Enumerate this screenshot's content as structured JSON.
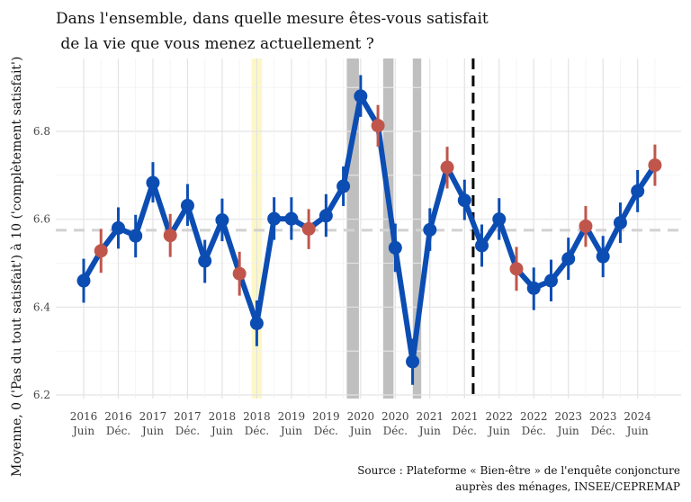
{
  "chart_data": {
    "type": "line",
    "title_lines": [
      "Dans l'ensemble, dans quelle mesure êtes-vous satisfait",
      " de la vie que vous menez actuellement ?"
    ],
    "ylabel": "Moyenne, 0 ('Pas du tout satisfait') à 10 ('complètement satisfait')",
    "ylim": [
      6.2,
      6.95
    ],
    "yticks": [
      6.2,
      6.4,
      6.6,
      6.8
    ],
    "ytick_labels": [
      "6.2",
      "6.4",
      "6.6",
      "6.8"
    ],
    "xticks": [
      {
        "x": 0,
        "year": "2016",
        "label": "Juin"
      },
      {
        "x": 2,
        "year": "2016",
        "label": "Déc."
      },
      {
        "x": 4,
        "year": "2017",
        "label": "Juin"
      },
      {
        "x": 6,
        "year": "2017",
        "label": "Déc."
      },
      {
        "x": 8,
        "year": "2018",
        "label": "Juin"
      },
      {
        "x": 10,
        "year": "2018",
        "label": "Déc."
      },
      {
        "x": 12,
        "year": "2019",
        "label": "Juin"
      },
      {
        "x": 14,
        "year": "2019",
        "label": "Déc."
      },
      {
        "x": 16,
        "year": "2020",
        "label": "Juin"
      },
      {
        "x": 18,
        "year": "2020",
        "label": "Déc."
      },
      {
        "x": 20,
        "year": "2021",
        "label": "Juin"
      },
      {
        "x": 22,
        "year": "2021",
        "label": "Déc."
      },
      {
        "x": 24,
        "year": "2022",
        "label": "Juin"
      },
      {
        "x": 26,
        "year": "2022",
        "label": "Déc."
      },
      {
        "x": 28,
        "year": "2023",
        "label": "Juin"
      },
      {
        "x": 30,
        "year": "2023",
        "label": "Déc."
      },
      {
        "x": 32,
        "year": "2024",
        "label": "Juin"
      }
    ],
    "reference_line": 6.575,
    "vertical_dashed_x": 22.5,
    "shaded_periods": [
      {
        "from": 9.7,
        "to": 10.3,
        "color": "#fdf7c7"
      },
      {
        "from": 15.2,
        "to": 15.9,
        "color": "#bfbfbf"
      },
      {
        "from": 17.3,
        "to": 17.9,
        "color": "#bfbfbf"
      },
      {
        "from": 19.0,
        "to": 19.5,
        "color": "#bfbfbf"
      }
    ],
    "series": [
      {
        "color": "#0c4db3",
        "highlight_color": "#c0564b",
        "points": [
          {
            "x": 0,
            "y": 6.46,
            "lo": 6.41,
            "hi": 6.51,
            "h": false
          },
          {
            "x": 1,
            "y": 6.528,
            "lo": 6.478,
            "hi": 6.578,
            "h": true
          },
          {
            "x": 2,
            "y": 6.58,
            "lo": 6.533,
            "hi": 6.627,
            "h": false
          },
          {
            "x": 3,
            "y": 6.562,
            "lo": 6.513,
            "hi": 6.61,
            "h": false
          },
          {
            "x": 4,
            "y": 6.683,
            "lo": 6.638,
            "hi": 6.73,
            "h": false
          },
          {
            "x": 5,
            "y": 6.563,
            "lo": 6.514,
            "hi": 6.612,
            "h": true
          },
          {
            "x": 6,
            "y": 6.631,
            "lo": 6.585,
            "hi": 6.68,
            "h": false
          },
          {
            "x": 7,
            "y": 6.505,
            "lo": 6.455,
            "hi": 6.553,
            "h": false
          },
          {
            "x": 8,
            "y": 6.598,
            "lo": 6.55,
            "hi": 6.647,
            "h": false
          },
          {
            "x": 9,
            "y": 6.476,
            "lo": 6.426,
            "hi": 6.526,
            "h": true
          },
          {
            "x": 10,
            "y": 6.363,
            "lo": 6.311,
            "hi": 6.415,
            "h": false
          },
          {
            "x": 11,
            "y": 6.601,
            "lo": 6.553,
            "hi": 6.65,
            "h": false
          },
          {
            "x": 12,
            "y": 6.601,
            "lo": 6.553,
            "hi": 6.65,
            "h": false
          },
          {
            "x": 13,
            "y": 6.578,
            "lo": 6.532,
            "hi": 6.623,
            "h": true
          },
          {
            "x": 14,
            "y": 6.608,
            "lo": 6.56,
            "hi": 6.657,
            "h": false
          },
          {
            "x": 15,
            "y": 6.675,
            "lo": 6.63,
            "hi": 6.72,
            "h": false
          },
          {
            "x": 16,
            "y": 6.88,
            "lo": 6.833,
            "hi": 6.928,
            "h": false
          },
          {
            "x": 17,
            "y": 6.813,
            "lo": 6.765,
            "hi": 6.86,
            "h": true
          },
          {
            "x": 18,
            "y": 6.535,
            "lo": 6.48,
            "hi": 6.59,
            "h": false
          },
          {
            "x": 19,
            "y": 6.276,
            "lo": 6.223,
            "hi": 6.328,
            "h": false
          },
          {
            "x": 20,
            "y": 6.576,
            "lo": 6.528,
            "hi": 6.625,
            "h": false
          },
          {
            "x": 21,
            "y": 6.718,
            "lo": 6.67,
            "hi": 6.765,
            "h": true
          },
          {
            "x": 22,
            "y": 6.643,
            "lo": 6.598,
            "hi": 6.69,
            "h": false
          },
          {
            "x": 23,
            "y": 6.54,
            "lo": 6.492,
            "hi": 6.588,
            "h": false
          },
          {
            "x": 24,
            "y": 6.6,
            "lo": 6.553,
            "hi": 6.648,
            "h": false
          },
          {
            "x": 25,
            "y": 6.487,
            "lo": 6.437,
            "hi": 6.537,
            "h": true
          },
          {
            "x": 26,
            "y": 6.443,
            "lo": 6.393,
            "hi": 6.49,
            "h": false
          },
          {
            "x": 27,
            "y": 6.46,
            "lo": 6.413,
            "hi": 6.508,
            "h": false
          },
          {
            "x": 28,
            "y": 6.51,
            "lo": 6.462,
            "hi": 6.558,
            "h": false
          },
          {
            "x": 29,
            "y": 6.584,
            "lo": 6.537,
            "hi": 6.63,
            "h": true
          },
          {
            "x": 30,
            "y": 6.515,
            "lo": 6.468,
            "hi": 6.562,
            "h": false
          },
          {
            "x": 31,
            "y": 6.592,
            "lo": 6.546,
            "hi": 6.638,
            "h": false
          },
          {
            "x": 32,
            "y": 6.664,
            "lo": 6.616,
            "hi": 6.712,
            "h": false
          },
          {
            "x": 33,
            "y": 6.723,
            "lo": 6.676,
            "hi": 6.77,
            "h": true
          }
        ]
      }
    ],
    "grid": true,
    "legend": "none",
    "source_lines": [
      "Source : Plateforme « Bien-être » de l'enquête conjoncture",
      "auprès des ménages, INSEE/CEPREMAP"
    ]
  }
}
